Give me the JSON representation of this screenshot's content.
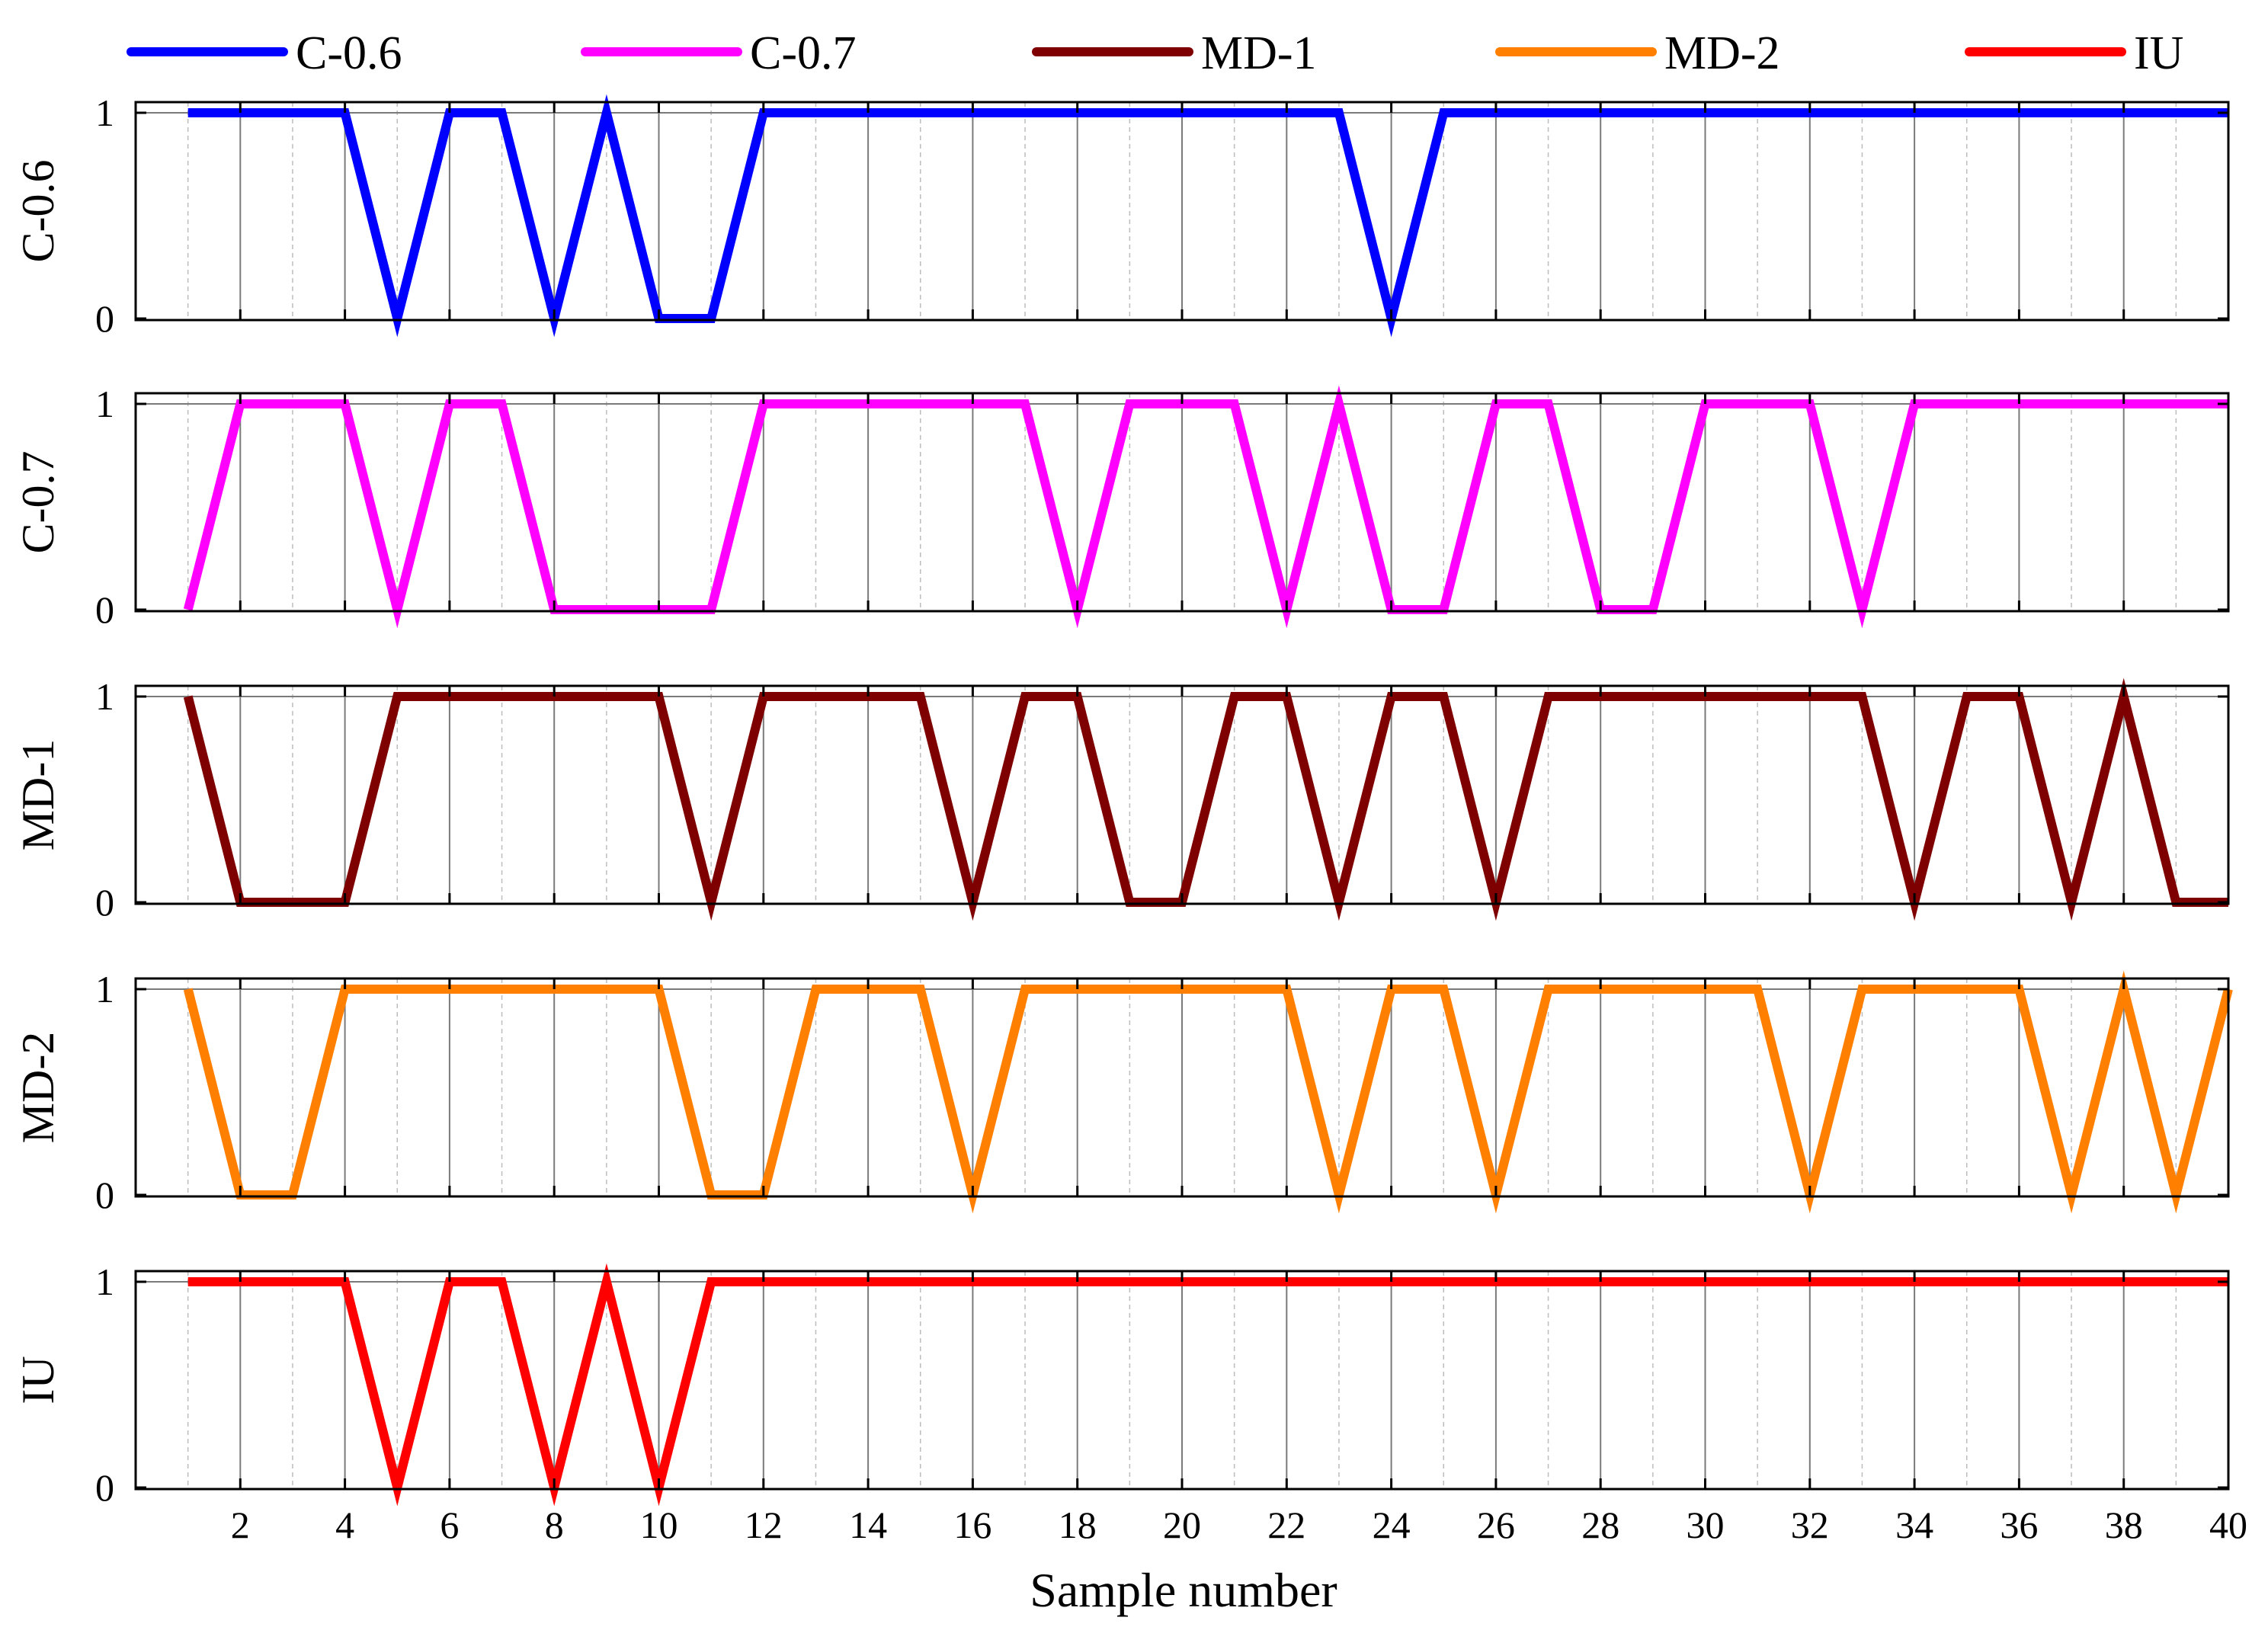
{
  "chart_data": {
    "type": "line",
    "xlabel": "Sample number",
    "xlim": [
      0,
      40
    ],
    "x_ticks": [
      "2",
      "4",
      "6",
      "8",
      "10",
      "12",
      "14",
      "16",
      "18",
      "20",
      "22",
      "24",
      "26",
      "28",
      "30",
      "32",
      "34",
      "36",
      "38",
      "40"
    ],
    "y_ticks": [
      "0",
      "1"
    ],
    "ylim": [
      0,
      1
    ],
    "legend_position": "top",
    "grid": true,
    "series": [
      {
        "name": "C-0.6",
        "ylabel": "C-0.6",
        "color": "#0000ff",
        "x": [
          1,
          4,
          5,
          6,
          7,
          8,
          9,
          10,
          11,
          12,
          23,
          24,
          25,
          40
        ],
        "values": [
          1,
          1,
          0,
          1,
          1,
          0,
          1,
          0,
          0,
          1,
          1,
          0,
          1,
          1
        ]
      },
      {
        "name": "C-0.7",
        "ylabel": "C-0.7",
        "color": "#ff00ff",
        "x": [
          1,
          2,
          4,
          5,
          6,
          7,
          8,
          11,
          12,
          17,
          18,
          19,
          21,
          22,
          23,
          24,
          25,
          26,
          27,
          28,
          29,
          30,
          32,
          33,
          34,
          40
        ],
        "values": [
          0,
          1,
          1,
          0,
          1,
          1,
          0,
          0,
          1,
          1,
          0,
          1,
          1,
          0,
          1,
          0,
          0,
          1,
          1,
          0,
          0,
          1,
          1,
          0,
          1,
          1
        ]
      },
      {
        "name": "MD-1",
        "ylabel": "MD-1",
        "color": "#7f0000",
        "x": [
          1,
          2,
          4,
          5,
          10,
          11,
          12,
          15,
          16,
          17,
          18,
          19,
          20,
          21,
          22,
          23,
          24,
          25,
          26,
          27,
          33,
          34,
          35,
          36,
          37,
          38,
          39,
          40
        ],
        "values": [
          1,
          0,
          0,
          1,
          1,
          0,
          1,
          1,
          0,
          1,
          1,
          0,
          0,
          1,
          1,
          0,
          1,
          1,
          0,
          1,
          1,
          0,
          1,
          1,
          0,
          1,
          0,
          0
        ]
      },
      {
        "name": "MD-2",
        "ylabel": "MD-2",
        "color": "#ff8000",
        "x": [
          1,
          2,
          3,
          4,
          10,
          11,
          12,
          13,
          15,
          16,
          17,
          22,
          23,
          24,
          25,
          26,
          27,
          31,
          32,
          33,
          36,
          37,
          38,
          39,
          40
        ],
        "values": [
          1,
          0,
          0,
          1,
          1,
          0,
          0,
          1,
          1,
          0,
          1,
          1,
          0,
          1,
          1,
          0,
          1,
          1,
          0,
          1,
          1,
          0,
          1,
          0,
          1
        ]
      },
      {
        "name": "IU",
        "ylabel": "IU",
        "color": "#ff0000",
        "x": [
          1,
          4,
          5,
          6,
          7,
          8,
          9,
          10,
          11,
          40
        ],
        "values": [
          1,
          1,
          0,
          1,
          1,
          0,
          1,
          0,
          1,
          1
        ]
      }
    ]
  }
}
